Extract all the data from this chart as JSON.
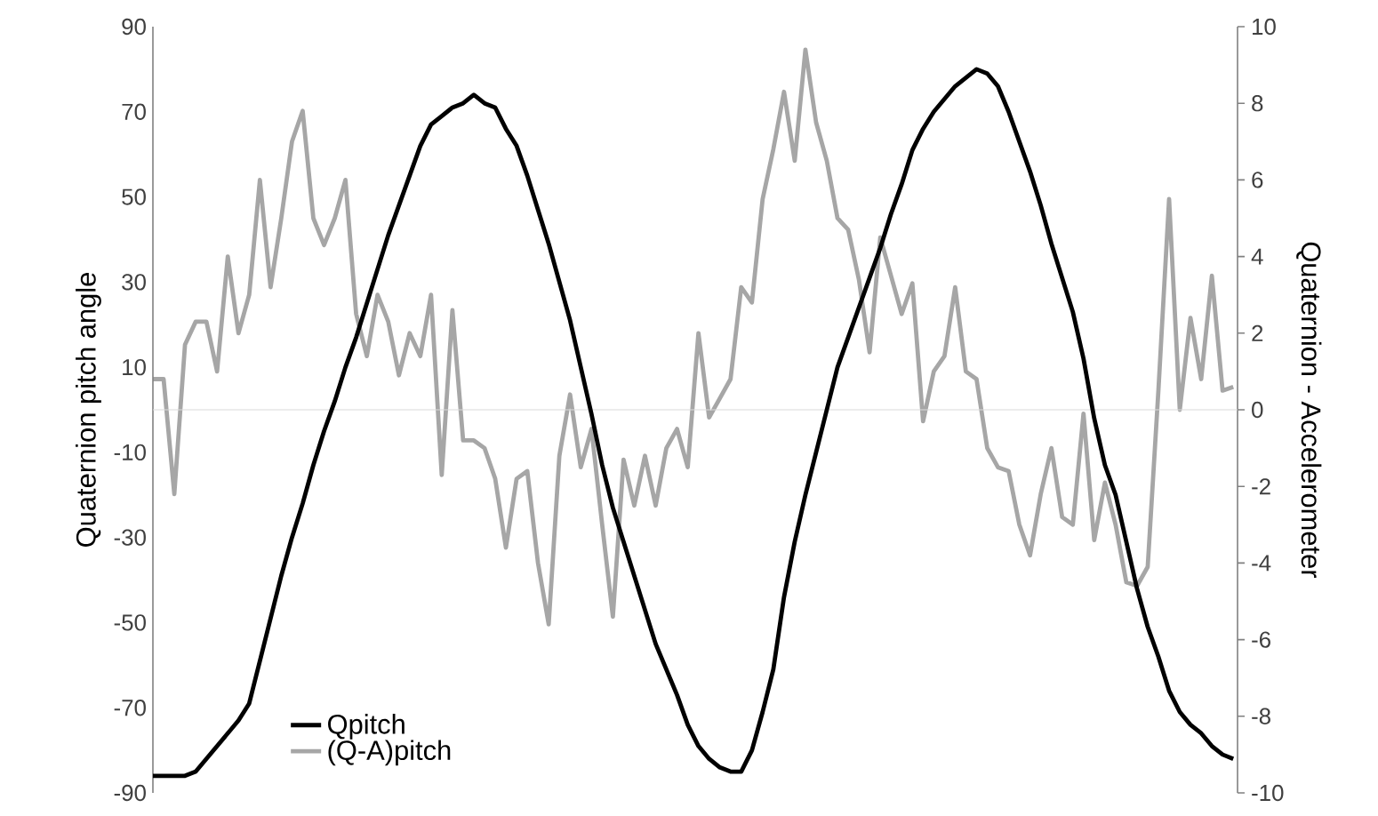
{
  "chart_data": {
    "type": "line",
    "ylabel": "Quaternion pitch angle",
    "y2label": "Quaternion - Accelerometer",
    "categories": [
      null,
      null,
      null,
      null,
      null,
      null,
      null,
      null,
      null,
      null,
      null,
      null,
      null,
      null,
      null,
      null,
      null,
      null,
      null,
      null,
      null,
      null,
      null,
      null,
      null,
      null,
      null,
      null,
      null,
      null,
      null,
      null,
      null,
      null,
      null,
      null,
      null,
      null,
      null,
      null,
      null,
      null,
      null,
      null,
      null,
      null,
      null,
      null,
      null,
      null,
      null,
      null,
      null,
      null,
      null,
      null,
      null,
      null,
      null,
      null,
      null,
      null,
      null,
      null,
      null,
      null,
      null,
      null,
      null,
      null,
      null,
      null,
      null,
      null,
      null,
      null,
      null,
      null,
      null,
      null,
      null,
      null,
      null,
      null,
      null,
      null,
      null,
      null,
      null,
      null,
      null,
      null,
      null,
      null,
      null,
      null,
      null,
      null,
      null,
      null,
      null,
      null
    ],
    "series": [
      {
        "name": "Qpitch",
        "color": "#000000",
        "values": [
          -86,
          -86,
          -86,
          -86,
          -85,
          -82,
          -79,
          -76,
          -73,
          -69,
          -59,
          -49,
          -39,
          -30,
          -22,
          -13,
          -5,
          2,
          10,
          17,
          25,
          33,
          41,
          48,
          55,
          62,
          67,
          69,
          71,
          72,
          74,
          72,
          71,
          66,
          62,
          55,
          47,
          39,
          30,
          21,
          10,
          -1,
          -13,
          -23,
          -31,
          -39,
          -47,
          -55,
          -61,
          -67,
          -74,
          -79,
          -82,
          -84,
          -85,
          -85,
          -80,
          -71,
          -61,
          -44,
          -31,
          -20,
          -10,
          0,
          10,
          17,
          24,
          31,
          38,
          46,
          53,
          61,
          66,
          70,
          73,
          76,
          78,
          80,
          79,
          76,
          70,
          63,
          56,
          48,
          39,
          31,
          23,
          12,
          -2,
          -13,
          -20,
          -31,
          -42,
          -51,
          -58,
          -66,
          -71,
          -74,
          -76,
          -79,
          -81,
          -82
        ]
      },
      {
        "name": "(Q-A)pitch",
        "color": "#a6a6a6",
        "axis": "y2",
        "values": [
          0.8,
          0.8,
          -2.2,
          1.7,
          2.3,
          2.3,
          1.0,
          4.0,
          2.0,
          3.0,
          6.0,
          3.2,
          5.0,
          7.0,
          7.8,
          5.0,
          4.3,
          5.0,
          6.0,
          2.5,
          1.4,
          3.0,
          2.3,
          0.9,
          2.0,
          1.4,
          3.0,
          -1.7,
          2.6,
          -0.8,
          -0.8,
          -1.0,
          -1.8,
          -3.6,
          -1.8,
          -1.6,
          -4.0,
          -5.6,
          -1.2,
          0.4,
          -1.5,
          -0.5,
          -3.0,
          -5.4,
          -1.3,
          -2.5,
          -1.2,
          -2.5,
          -1.0,
          -0.5,
          -1.5,
          2.0,
          -0.2,
          0.3,
          0.8,
          3.2,
          2.8,
          5.5,
          6.8,
          8.3,
          6.5,
          9.4,
          7.5,
          6.5,
          5.0,
          4.7,
          3.4,
          1.5,
          4.5,
          3.5,
          2.5,
          3.3,
          -0.3,
          1.0,
          1.4,
          3.2,
          1.0,
          0.8,
          -1.0,
          -1.5,
          -1.6,
          -3.0,
          -3.8,
          -2.2,
          -1.0,
          -2.8,
          -3.0,
          -0.1,
          -3.4,
          -1.9,
          -3.0,
          -4.5,
          -4.6,
          -4.1,
          0.5,
          5.5,
          0.0,
          2.4,
          0.8,
          3.5,
          0.5,
          0.6
        ]
      }
    ],
    "ylim": [
      -90,
      90
    ],
    "yticks": [
      -90,
      -70,
      -50,
      -30,
      -10,
      10,
      30,
      50,
      70,
      90
    ],
    "y2lim": [
      -10,
      10
    ],
    "y2ticks": [
      -10,
      -8,
      -6,
      -4,
      -2,
      0,
      2,
      4,
      6,
      8,
      10
    ],
    "tick_labels": "y",
    "ref_lines": [
      {
        "axis": "y",
        "value": 0,
        "color": "#d9d9d9"
      }
    ],
    "legend": "bottom left",
    "grid": false,
    "marker": "none",
    "line_style": "solid"
  }
}
